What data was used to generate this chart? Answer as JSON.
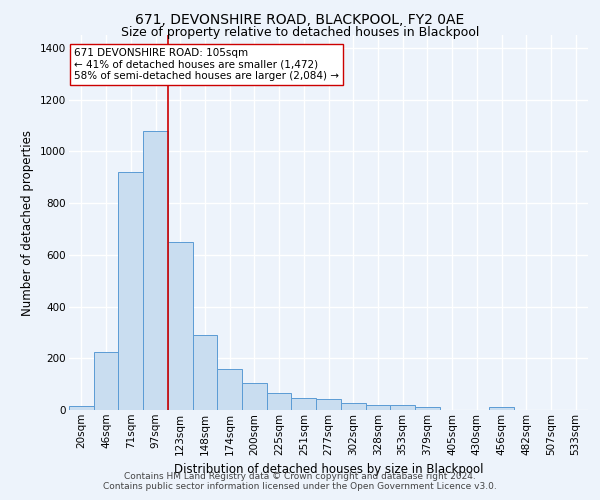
{
  "title": "671, DEVONSHIRE ROAD, BLACKPOOL, FY2 0AE",
  "subtitle": "Size of property relative to detached houses in Blackpool",
  "xlabel": "Distribution of detached houses by size in Blackpool",
  "ylabel": "Number of detached properties",
  "bar_labels": [
    "20sqm",
    "46sqm",
    "71sqm",
    "97sqm",
    "123sqm",
    "148sqm",
    "174sqm",
    "200sqm",
    "225sqm",
    "251sqm",
    "277sqm",
    "302sqm",
    "328sqm",
    "353sqm",
    "379sqm",
    "405sqm",
    "430sqm",
    "456sqm",
    "482sqm",
    "507sqm",
    "533sqm"
  ],
  "bar_values": [
    15,
    225,
    920,
    1080,
    650,
    290,
    158,
    105,
    67,
    45,
    43,
    27,
    20,
    18,
    10,
    0,
    0,
    10,
    0,
    0,
    0
  ],
  "bar_color": "#c9ddf0",
  "bar_edge_color": "#5b9bd5",
  "ylim": [
    0,
    1450
  ],
  "yticks": [
    0,
    200,
    400,
    600,
    800,
    1000,
    1200,
    1400
  ],
  "vline_index": 3.5,
  "vline_color": "#cc0000",
  "annotation_text": "671 DEVONSHIRE ROAD: 105sqm\n← 41% of detached houses are smaller (1,472)\n58% of semi-detached houses are larger (2,084) →",
  "annotation_box_color": "#ffffff",
  "annotation_box_edge": "#cc0000",
  "footer1": "Contains HM Land Registry data © Crown copyright and database right 2024.",
  "footer2": "Contains public sector information licensed under the Open Government Licence v3.0.",
  "bg_color": "#edf3fb",
  "plot_bg_color": "#edf3fb",
  "grid_color": "#ffffff",
  "title_fontsize": 10,
  "subtitle_fontsize": 9,
  "axis_label_fontsize": 8.5,
  "tick_fontsize": 7.5,
  "annotation_fontsize": 7.5,
  "footer_fontsize": 6.5
}
